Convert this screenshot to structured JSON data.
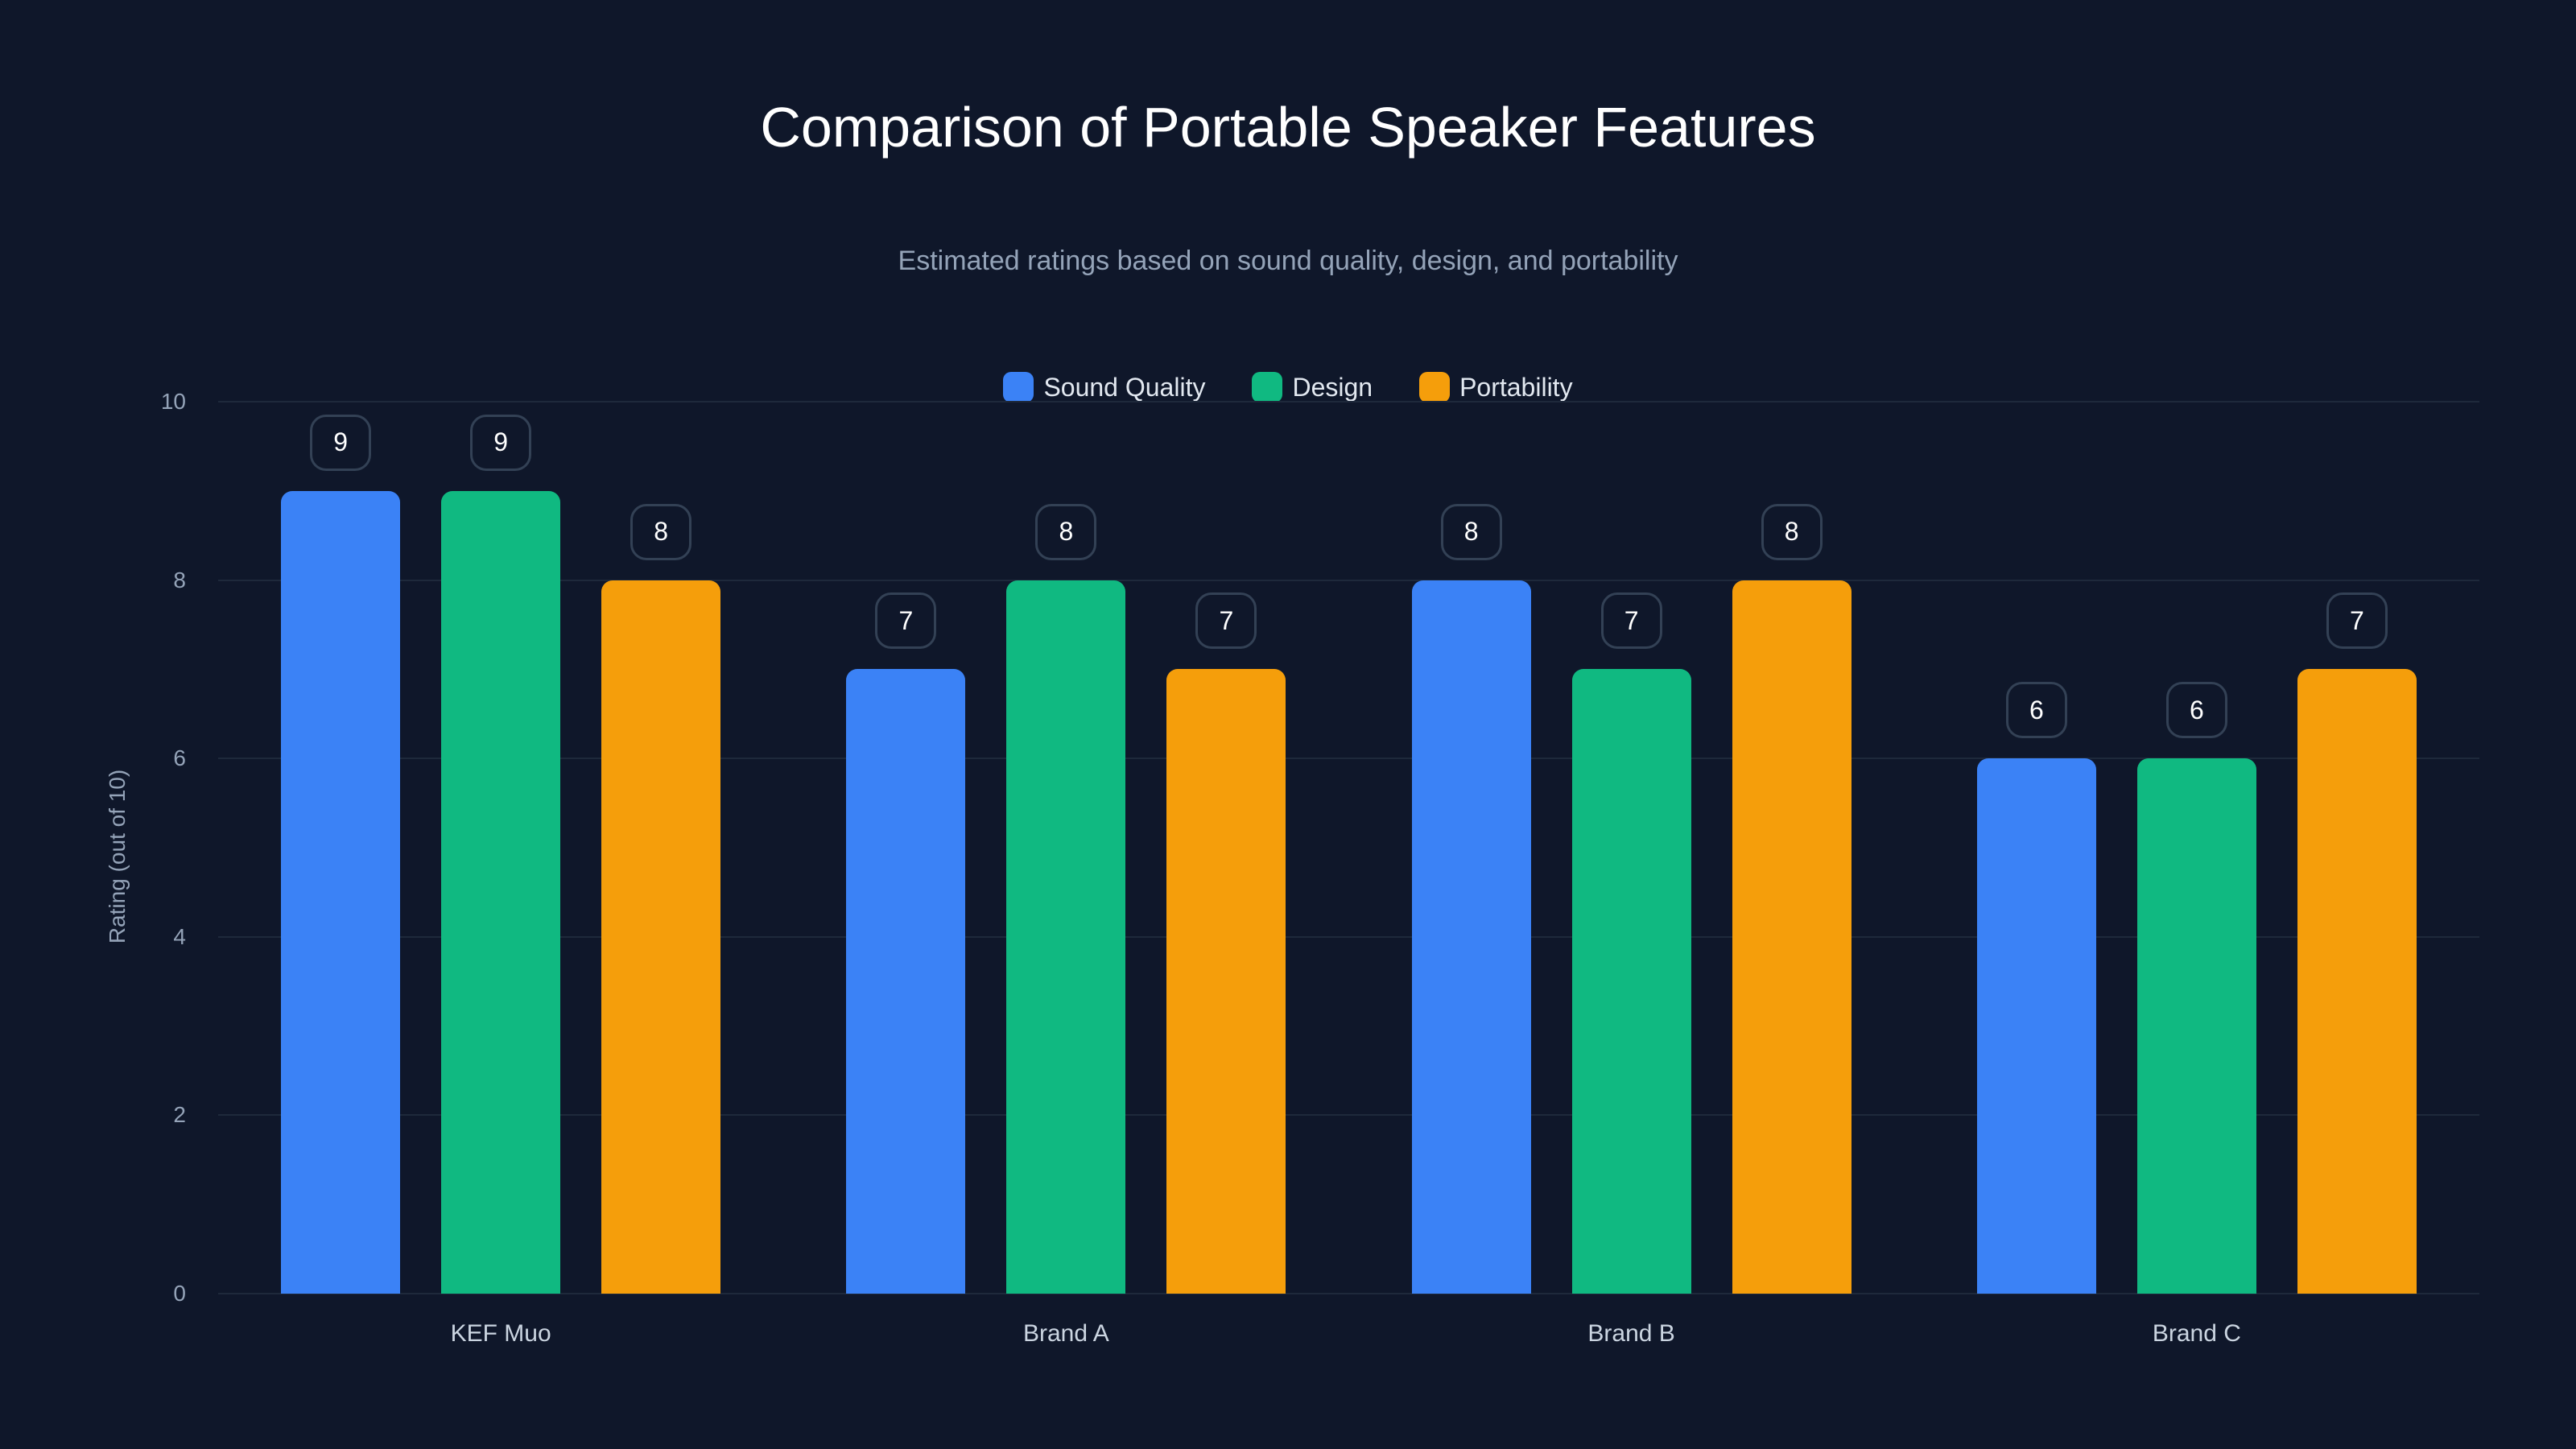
{
  "title": "Comparison of Portable Speaker Features",
  "subtitle": "Estimated ratings based on sound quality, design, and portability",
  "legend": [
    {
      "label": "Sound Quality",
      "color": "#3b82f6"
    },
    {
      "label": "Design",
      "color": "#10b981"
    },
    {
      "label": "Portability",
      "color": "#f59e0b"
    }
  ],
  "yaxis": {
    "label": "Rating (out of 10)",
    "ticks": [
      "0",
      "2",
      "4",
      "6",
      "8",
      "10"
    ]
  },
  "xaxis": {
    "categories": [
      "KEF Muo",
      "Brand A",
      "Brand B",
      "Brand C"
    ]
  },
  "chart_data": {
    "type": "bar",
    "title": "Comparison of Portable Speaker Features",
    "subtitle": "Estimated ratings based on sound quality, design, and portability",
    "xlabel": "",
    "ylabel": "Rating (out of 10)",
    "ylim": [
      0,
      10
    ],
    "yticks": [
      0,
      2,
      4,
      6,
      8,
      10
    ],
    "grid": true,
    "legend_position": "top",
    "categories": [
      "KEF Muo",
      "Brand A",
      "Brand B",
      "Brand C"
    ],
    "series": [
      {
        "name": "Sound Quality",
        "color": "#3b82f6",
        "values": [
          9,
          7,
          8,
          6
        ]
      },
      {
        "name": "Design",
        "color": "#10b981",
        "values": [
          9,
          8,
          7,
          6
        ]
      },
      {
        "name": "Portability",
        "color": "#f59e0b",
        "values": [
          8,
          7,
          8,
          7
        ]
      }
    ],
    "data_labels": true
  }
}
